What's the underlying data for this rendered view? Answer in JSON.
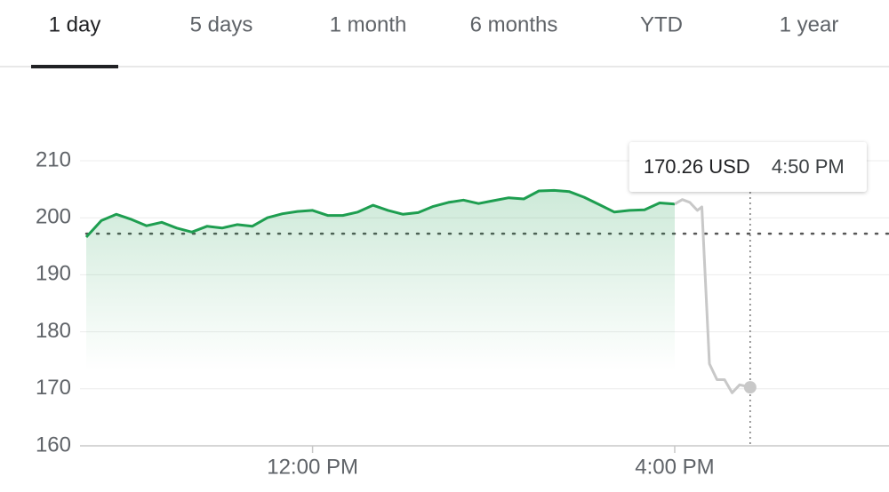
{
  "tabs": [
    "1 day",
    "5 days",
    "1 month",
    "6 months",
    "YTD",
    "1 year"
  ],
  "selected_tab": 0,
  "chart_data": {
    "type": "line",
    "x": [
      570,
      580,
      590,
      600,
      610,
      620,
      630,
      640,
      650,
      660,
      670,
      680,
      690,
      700,
      710,
      720,
      730,
      740,
      750,
      760,
      770,
      780,
      790,
      800,
      810,
      820,
      830,
      840,
      850,
      860,
      870,
      880,
      890,
      900,
      910,
      920,
      930,
      940,
      950,
      960,
      965,
      970,
      975,
      978,
      983,
      988,
      993,
      998,
      1003,
      1010
    ],
    "series": [
      {
        "color": "#1e9e50",
        "fill": true,
        "values": [
          196.6,
          199.5,
          200.6,
          199.7,
          198.6,
          199.2,
          198.2,
          197.5,
          198.5,
          198.2,
          198.8,
          198.5,
          200.0,
          200.7,
          201.1,
          201.3,
          200.4,
          200.4,
          201.0,
          202.2,
          201.3,
          200.6,
          200.9,
          202.0,
          202.7,
          203.1,
          202.5,
          203.0,
          203.5,
          203.3,
          204.7,
          204.8,
          204.6,
          203.6,
          202.3,
          201.0,
          201.3,
          201.4,
          202.6,
          202.4,
          null,
          null,
          null,
          null,
          null,
          null,
          null,
          null,
          null,
          null
        ]
      },
      {
        "color": "#c8c8c8",
        "fill": false,
        "values": [
          null,
          null,
          null,
          null,
          null,
          null,
          null,
          null,
          null,
          null,
          null,
          null,
          null,
          null,
          null,
          null,
          null,
          null,
          null,
          null,
          null,
          null,
          null,
          null,
          null,
          null,
          null,
          null,
          null,
          null,
          null,
          null,
          null,
          null,
          null,
          null,
          null,
          null,
          null,
          202.4,
          203.2,
          202.7,
          201.3,
          201.9,
          174.4,
          171.6,
          171.6,
          169.3,
          170.7,
          170.26
        ]
      }
    ],
    "xlim": [
      570,
      1102
    ],
    "xticks": [
      {
        "value": 720,
        "label": "12:00 PM"
      },
      {
        "value": 960,
        "label": "4:00 PM"
      }
    ],
    "ylim": [
      160,
      210
    ],
    "yticks": [
      160,
      170,
      180,
      190,
      200,
      210
    ],
    "grid": true,
    "reference_line": 197.2,
    "tooltip": {
      "price": "170.26 USD",
      "time": "4:50 PM"
    }
  }
}
